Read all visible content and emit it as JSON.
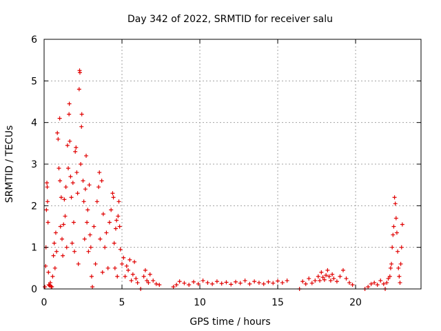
{
  "chart_data": {
    "type": "scatter",
    "title": "Day 342 of 2022, SRMTID for receiver salu",
    "xlabel": "GPS time / hours",
    "ylabel": "SRMTID / TECUs",
    "xlim": [
      0,
      24.2
    ],
    "ylim": [
      0,
      6
    ],
    "xticks": [
      0,
      5,
      10,
      15,
      20
    ],
    "xtick_labels": [
      "0",
      "5",
      "10",
      "15",
      "20"
    ],
    "yticks": [
      0,
      1,
      2,
      3,
      4,
      5,
      6
    ],
    "ytick_labels": [
      "0",
      "1",
      "2",
      "3",
      "4",
      "5",
      "6"
    ],
    "grid": true,
    "marker": "plus",
    "series": [
      {
        "name": "SRMTID",
        "color": "#e00000",
        "points": [
          [
            0.05,
            0.05
          ],
          [
            0.1,
            0.55
          ],
          [
            0.12,
            1.0
          ],
          [
            0.15,
            1.9
          ],
          [
            0.18,
            2.55
          ],
          [
            0.2,
            2.45
          ],
          [
            0.22,
            2.1
          ],
          [
            0.25,
            1.6
          ],
          [
            0.28,
            0.4
          ],
          [
            0.3,
            0.1
          ],
          [
            0.35,
            0.08
          ],
          [
            0.4,
            0.15
          ],
          [
            0.45,
            0.06
          ],
          [
            0.5,
            0.05
          ],
          [
            0.55,
            0.3
          ],
          [
            0.6,
            0.8
          ],
          [
            0.65,
            1.1
          ],
          [
            0.7,
            0.5
          ],
          [
            0.75,
            1.35
          ],
          [
            0.8,
            0.9
          ],
          [
            0.85,
            3.75
          ],
          [
            0.9,
            3.6
          ],
          [
            0.95,
            2.9
          ],
          [
            1.0,
            4.1
          ],
          [
            1.02,
            2.6
          ],
          [
            1.05,
            1.5
          ],
          [
            1.1,
            2.2
          ],
          [
            1.15,
            1.2
          ],
          [
            1.2,
            0.8
          ],
          [
            1.25,
            1.55
          ],
          [
            1.3,
            2.15
          ],
          [
            1.35,
            1.75
          ],
          [
            1.4,
            2.45
          ],
          [
            1.45,
            1.0
          ],
          [
            1.5,
            3.45
          ],
          [
            1.55,
            2.9
          ],
          [
            1.6,
            4.2
          ],
          [
            1.62,
            4.45
          ],
          [
            1.65,
            3.55
          ],
          [
            1.7,
            2.7
          ],
          [
            1.75,
            2.2
          ],
          [
            1.8,
            1.1
          ],
          [
            1.85,
            2.55
          ],
          [
            1.9,
            1.6
          ],
          [
            1.95,
            0.9
          ],
          [
            2.0,
            3.3
          ],
          [
            2.05,
            3.4
          ],
          [
            2.1,
            2.8
          ],
          [
            2.15,
            2.3
          ],
          [
            2.2,
            0.6
          ],
          [
            2.25,
            4.8
          ],
          [
            2.28,
            5.25
          ],
          [
            2.3,
            5.2
          ],
          [
            2.35,
            3.0
          ],
          [
            2.4,
            3.9
          ],
          [
            2.42,
            4.2
          ],
          [
            2.5,
            2.6
          ],
          [
            2.55,
            2.1
          ],
          [
            2.6,
            1.2
          ],
          [
            2.65,
            2.4
          ],
          [
            2.7,
            3.2
          ],
          [
            2.75,
            1.6
          ],
          [
            2.8,
            1.9
          ],
          [
            2.85,
            0.9
          ],
          [
            2.9,
            2.5
          ],
          [
            2.95,
            1.3
          ],
          [
            3.0,
            1.0
          ],
          [
            3.05,
            0.3
          ],
          [
            3.1,
            0.05
          ],
          [
            3.2,
            1.5
          ],
          [
            3.3,
            0.6
          ],
          [
            3.4,
            2.1
          ],
          [
            3.5,
            2.45
          ],
          [
            3.55,
            2.8
          ],
          [
            3.6,
            1.2
          ],
          [
            3.7,
            2.6
          ],
          [
            3.75,
            0.4
          ],
          [
            3.8,
            1.8
          ],
          [
            3.9,
            1.0
          ],
          [
            4.0,
            1.35
          ],
          [
            4.1,
            0.5
          ],
          [
            4.2,
            1.6
          ],
          [
            4.3,
            1.9
          ],
          [
            4.4,
            2.3
          ],
          [
            4.45,
            2.2
          ],
          [
            4.5,
            1.1
          ],
          [
            4.55,
            0.5
          ],
          [
            4.6,
            1.45
          ],
          [
            4.65,
            1.65
          ],
          [
            4.7,
            0.3
          ],
          [
            4.75,
            1.75
          ],
          [
            4.8,
            2.1
          ],
          [
            4.85,
            1.5
          ],
          [
            4.9,
            0.95
          ],
          [
            5.0,
            0.6
          ],
          [
            5.1,
            0.75
          ],
          [
            5.2,
            0.3
          ],
          [
            5.3,
            0.55
          ],
          [
            5.4,
            0.45
          ],
          [
            5.5,
            0.7
          ],
          [
            5.6,
            0.2
          ],
          [
            5.7,
            0.35
          ],
          [
            5.8,
            0.65
          ],
          [
            5.9,
            0.25
          ],
          [
            6.0,
            0.15
          ],
          [
            6.2,
            0.0
          ],
          [
            6.4,
            0.3
          ],
          [
            6.5,
            0.45
          ],
          [
            6.6,
            0.2
          ],
          [
            6.7,
            0.15
          ],
          [
            6.8,
            0.35
          ],
          [
            7.0,
            0.2
          ],
          [
            7.2,
            0.12
          ],
          [
            7.4,
            0.1
          ],
          [
            8.3,
            0.05
          ],
          [
            8.5,
            0.1
          ],
          [
            8.7,
            0.18
          ],
          [
            9.0,
            0.14
          ],
          [
            9.3,
            0.1
          ],
          [
            9.6,
            0.17
          ],
          [
            9.9,
            0.12
          ],
          [
            10.2,
            0.2
          ],
          [
            10.5,
            0.15
          ],
          [
            10.8,
            0.12
          ],
          [
            11.1,
            0.18
          ],
          [
            11.4,
            0.13
          ],
          [
            11.7,
            0.16
          ],
          [
            12.0,
            0.11
          ],
          [
            12.3,
            0.17
          ],
          [
            12.6,
            0.14
          ],
          [
            12.9,
            0.2
          ],
          [
            13.2,
            0.12
          ],
          [
            13.5,
            0.18
          ],
          [
            13.8,
            0.15
          ],
          [
            14.1,
            0.12
          ],
          [
            14.4,
            0.17
          ],
          [
            14.7,
            0.14
          ],
          [
            15.0,
            0.19
          ],
          [
            15.3,
            0.15
          ],
          [
            15.6,
            0.2
          ],
          [
            16.4,
            0.0
          ],
          [
            16.6,
            0.18
          ],
          [
            16.8,
            0.12
          ],
          [
            17.0,
            0.25
          ],
          [
            17.2,
            0.14
          ],
          [
            17.4,
            0.2
          ],
          [
            17.6,
            0.3
          ],
          [
            17.7,
            0.2
          ],
          [
            17.8,
            0.4
          ],
          [
            17.9,
            0.28
          ],
          [
            18.0,
            0.22
          ],
          [
            18.1,
            0.33
          ],
          [
            18.2,
            0.45
          ],
          [
            18.3,
            0.3
          ],
          [
            18.4,
            0.2
          ],
          [
            18.5,
            0.35
          ],
          [
            18.6,
            0.25
          ],
          [
            18.8,
            0.18
          ],
          [
            19.0,
            0.3
          ],
          [
            19.2,
            0.45
          ],
          [
            19.4,
            0.25
          ],
          [
            19.6,
            0.15
          ],
          [
            19.8,
            0.1
          ],
          [
            20.6,
            0.0
          ],
          [
            20.8,
            0.05
          ],
          [
            21.0,
            0.12
          ],
          [
            21.2,
            0.15
          ],
          [
            21.4,
            0.1
          ],
          [
            21.6,
            0.2
          ],
          [
            21.8,
            0.12
          ],
          [
            21.9,
            0.0
          ],
          [
            22.0,
            0.15
          ],
          [
            22.1,
            0.25
          ],
          [
            22.2,
            0.3
          ],
          [
            22.25,
            0.5
          ],
          [
            22.3,
            0.6
          ],
          [
            22.35,
            1.0
          ],
          [
            22.4,
            1.3
          ],
          [
            22.45,
            1.5
          ],
          [
            22.5,
            2.2
          ],
          [
            22.55,
            2.05
          ],
          [
            22.6,
            1.7
          ],
          [
            22.65,
            1.35
          ],
          [
            22.7,
            0.9
          ],
          [
            22.75,
            0.5
          ],
          [
            22.8,
            0.3
          ],
          [
            22.85,
            0.15
          ],
          [
            22.9,
            0.6
          ],
          [
            22.95,
            1.0
          ],
          [
            23.0,
            1.55
          ]
        ]
      }
    ]
  }
}
